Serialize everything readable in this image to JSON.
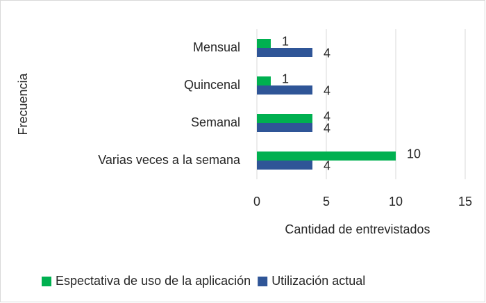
{
  "chart_data": {
    "type": "bar",
    "orientation": "horizontal",
    "x_label": "Cantidad de entrevistados",
    "y_label": "Frecuencia",
    "categories": [
      "Mensual",
      "Quincenal",
      "Semanal",
      "Varias veces a la semana"
    ],
    "series": [
      {
        "name": "Espectativa de uso de la aplicación",
        "color": "#00b050",
        "values": [
          1,
          1,
          4,
          10
        ]
      },
      {
        "name": "Utilización actual",
        "color": "#2f5597",
        "values": [
          4,
          4,
          4,
          4
        ]
      }
    ],
    "xlim": [
      0,
      15
    ],
    "xticks": [
      0,
      5,
      10,
      15
    ],
    "grid": true,
    "legend": "bottom"
  }
}
